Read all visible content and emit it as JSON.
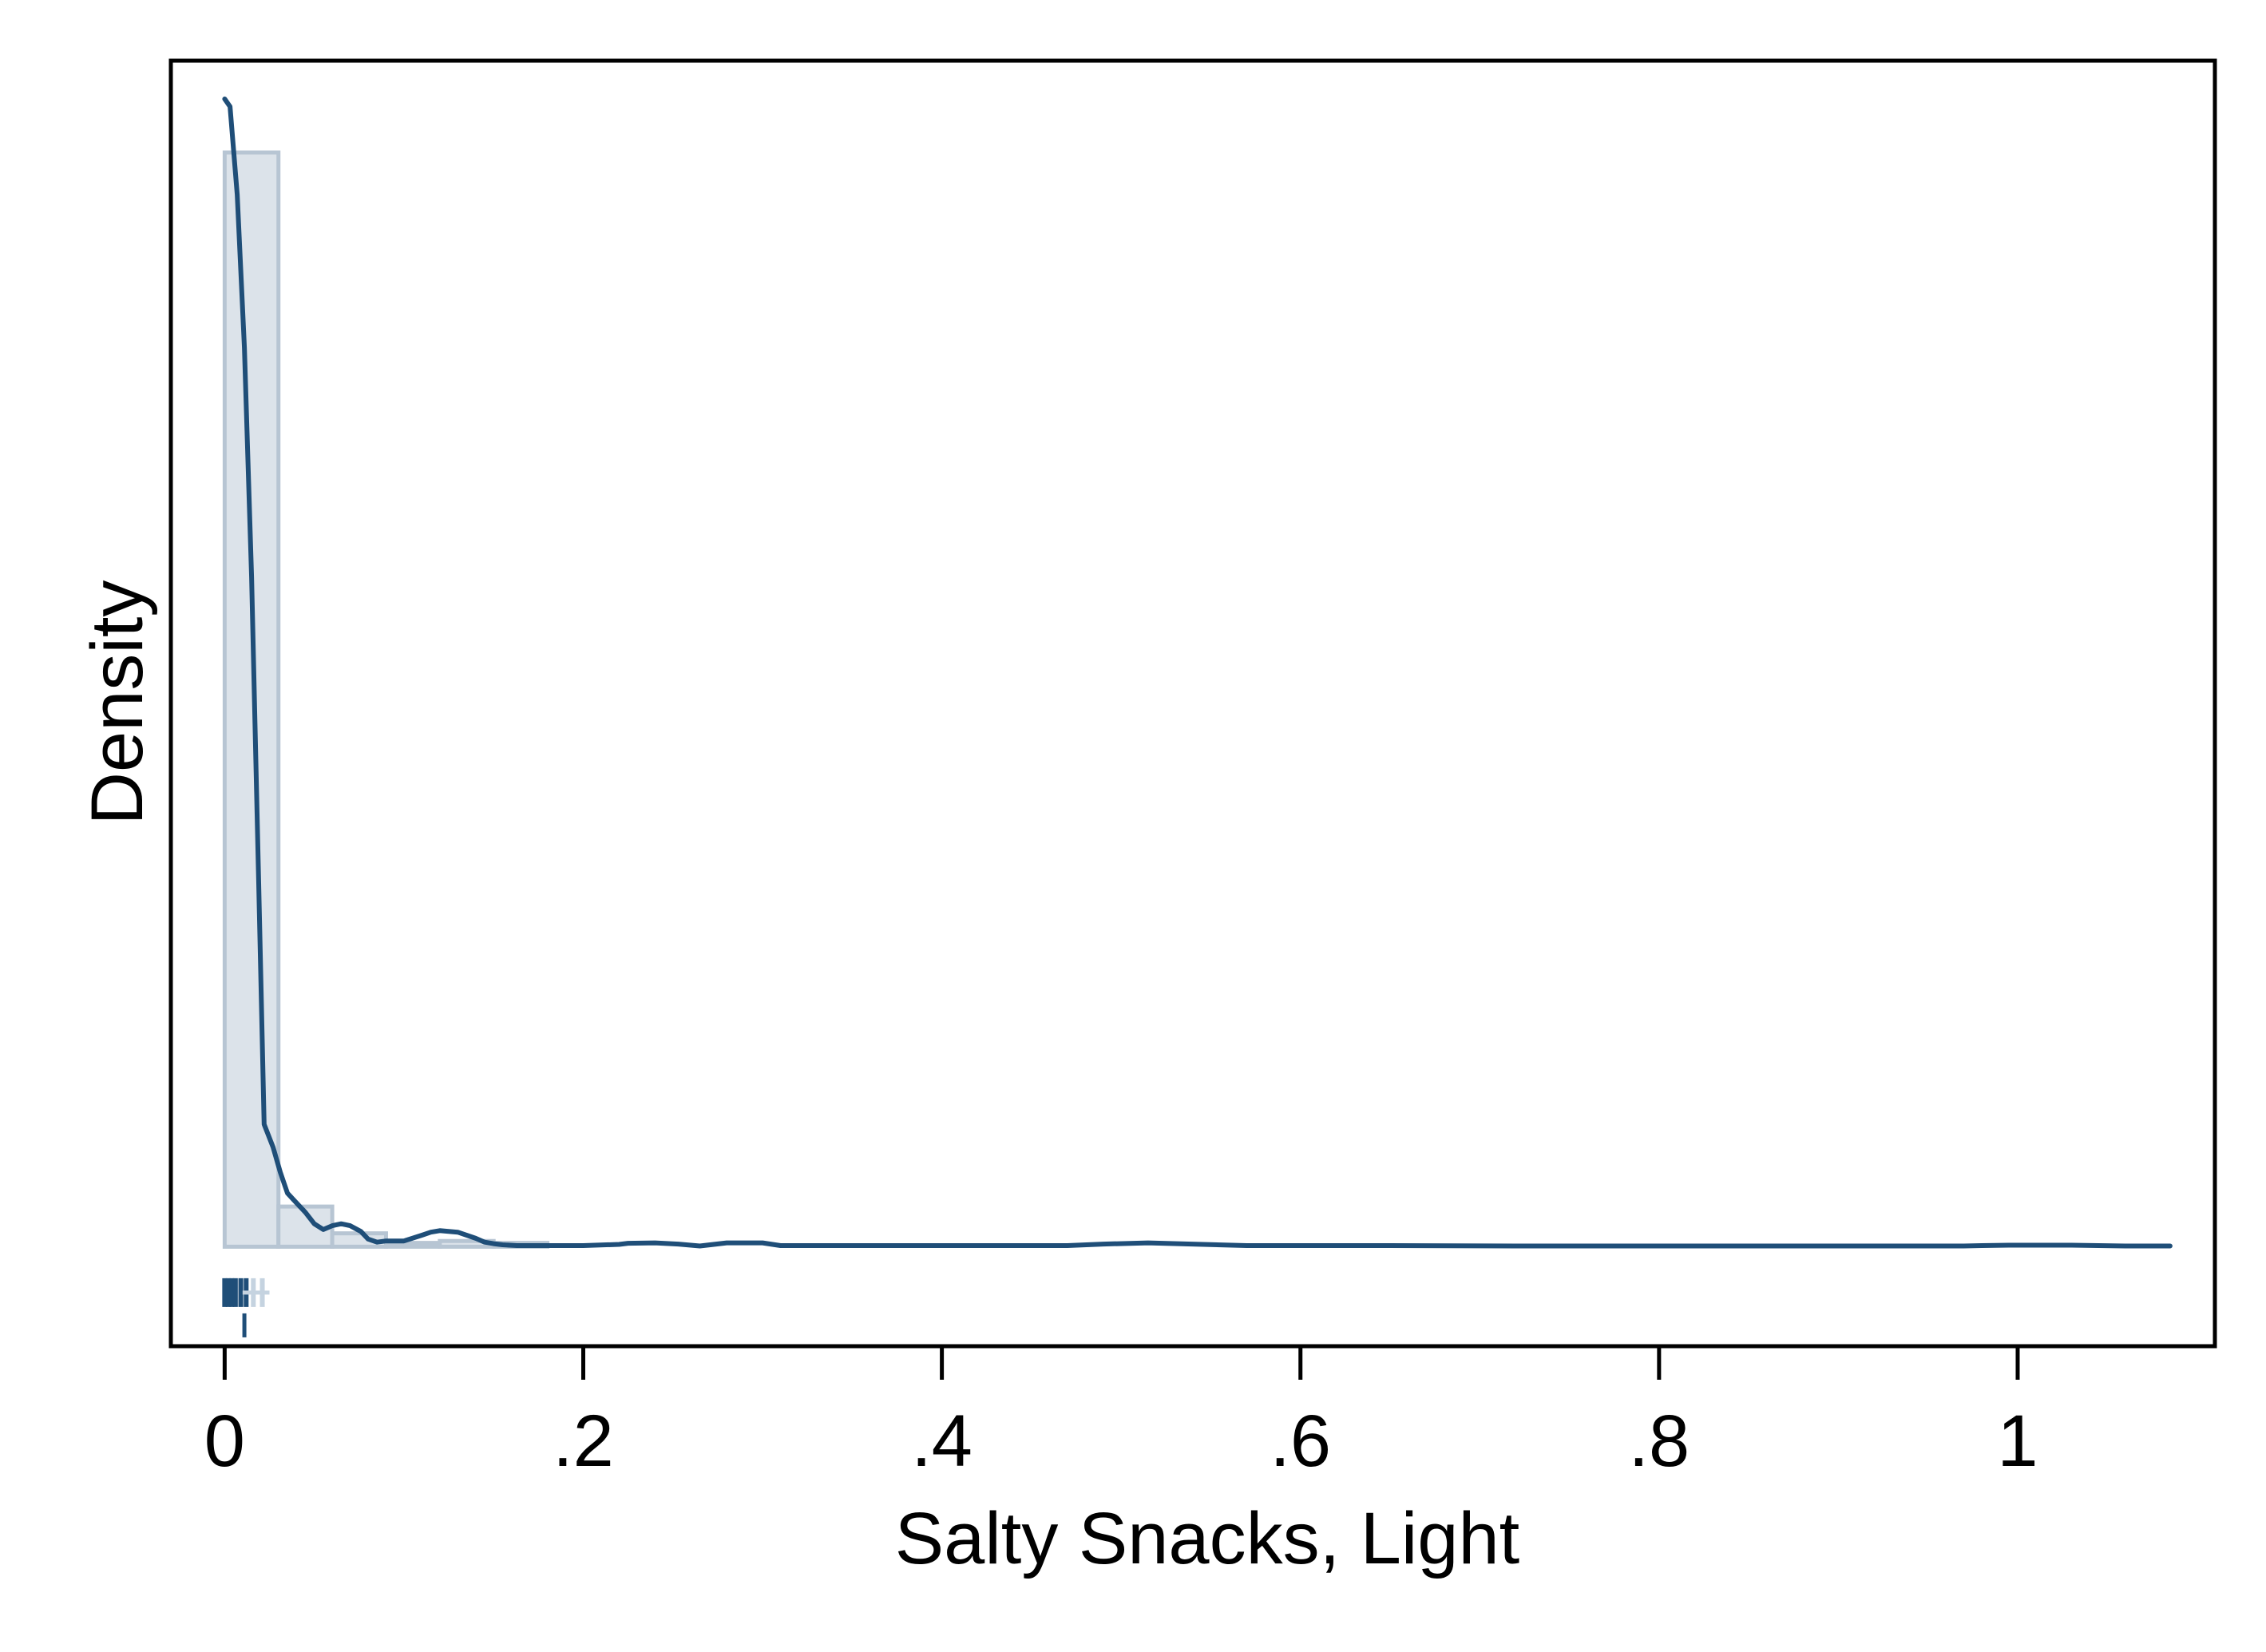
{
  "chart_data": {
    "type": "histogram-kde",
    "title": "",
    "xlabel": "Salty Snacks, Light",
    "ylabel": "Density",
    "xlim": [
      -0.03,
      1.11
    ],
    "ylim": [
      -2.6,
      31.0
    ],
    "x_ticks": [
      {
        "value": 0,
        "label": "0"
      },
      {
        "value": 0.2,
        "label": ".2"
      },
      {
        "value": 0.4,
        "label": ".4"
      },
      {
        "value": 0.6,
        "label": ".6"
      },
      {
        "value": 0.8,
        "label": ".8"
      },
      {
        "value": 1.0,
        "label": "1"
      }
    ],
    "y_ticks_shown": false,
    "grid": false,
    "legend": "none",
    "series": [
      {
        "kind": "histogram",
        "bin_width": 0.03,
        "bins": [
          {
            "x0": 0.0,
            "x1": 0.03,
            "density": 28.6
          },
          {
            "x0": 0.03,
            "x1": 0.06,
            "density": 1.05
          },
          {
            "x0": 0.06,
            "x1": 0.09,
            "density": 0.35
          },
          {
            "x0": 0.09,
            "x1": 0.12,
            "density": 0.1
          },
          {
            "x0": 0.12,
            "x1": 0.15,
            "density": 0.15
          },
          {
            "x0": 0.15,
            "x1": 0.18,
            "density": 0.1
          }
        ]
      },
      {
        "kind": "kde",
        "x": [
          0.0,
          0.003,
          0.007,
          0.011,
          0.015,
          0.019,
          0.022,
          0.027,
          0.031,
          0.035,
          0.039,
          0.045,
          0.05,
          0.055,
          0.06,
          0.065,
          0.07,
          0.076,
          0.08,
          0.085,
          0.09,
          0.095,
          0.1,
          0.11,
          0.115,
          0.12,
          0.13,
          0.14,
          0.145,
          0.15,
          0.155,
          0.163,
          0.175,
          0.2,
          0.22,
          0.225,
          0.24,
          0.253,
          0.265,
          0.28,
          0.3,
          0.31,
          0.35,
          0.38,
          0.43,
          0.47,
          0.49,
          0.515,
          0.57,
          0.65,
          0.72,
          0.8,
          0.9,
          0.97,
          0.98,
          0.995,
          1.03,
          1.06,
          1.085
        ],
        "y": [
          30.0,
          29.8,
          27.5,
          23.5,
          17.5,
          9.5,
          3.2,
          2.6,
          1.95,
          1.4,
          1.2,
          0.9,
          0.6,
          0.45,
          0.55,
          0.6,
          0.55,
          0.4,
          0.2,
          0.12,
          0.15,
          0.15,
          0.15,
          0.3,
          0.38,
          0.42,
          0.38,
          0.22,
          0.12,
          0.08,
          0.05,
          0.03,
          0.03,
          0.03,
          0.06,
          0.09,
          0.1,
          0.07,
          0.02,
          0.1,
          0.1,
          0.03,
          0.03,
          0.03,
          0.03,
          0.03,
          0.07,
          0.1,
          0.03,
          0.03,
          0.02,
          0.02,
          0.02,
          0.02,
          0.03,
          0.04,
          0.04,
          0.02,
          0.02
        ]
      },
      {
        "kind": "rug",
        "values": [
          0.0,
          0.002,
          0.004,
          0.006,
          0.009,
          0.012,
          0.016,
          0.021
        ]
      }
    ],
    "colors": {
      "hist_fill": "#dce3ea",
      "hist_stroke": "#b7c5d3",
      "kde_line": "#1f4e78",
      "rug_dark": "#1f4e78",
      "rug_light": "#c5d3e0",
      "axis": "#000000",
      "frame": "#000000"
    }
  }
}
